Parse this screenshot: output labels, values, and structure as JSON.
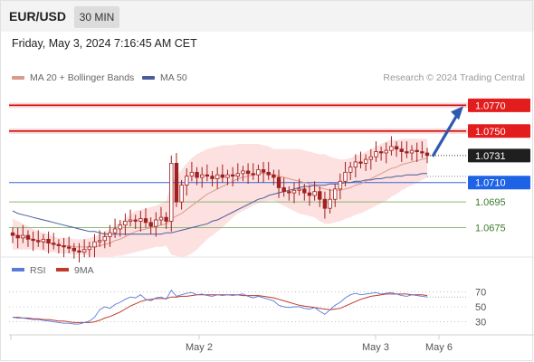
{
  "header": {
    "symbol": "EUR/USD",
    "timeframe": "30 MIN"
  },
  "datetime": "Friday, May 3, 2024 7:16:45 AM CET",
  "legend": {
    "ma20": "MA 20 + Bollinger Bands",
    "ma50": "MA 50"
  },
  "credit": "Research © 2024 Trading Central",
  "colors": {
    "resistance": "#cc1111",
    "support": "#8aba7a",
    "pivot": "#3b66d8",
    "ma50": "#4a5c9a",
    "ma20": "#d89a8a",
    "band": "#fde0e0",
    "candle": "#a02020"
  },
  "chart_data": [
    {
      "type": "candlestick",
      "price_range": [
        1.0655,
        1.0785
      ],
      "x_labels": [
        "May 2",
        "May 3",
        "May 6"
      ],
      "last_price": {
        "label": "1.0731",
        "value": 1.0731
      },
      "levels": [
        {
          "label": "1.0770",
          "value": 1.077,
          "kind": "resistance"
        },
        {
          "label": "1.0750",
          "value": 1.075,
          "kind": "resistance"
        },
        {
          "label": "1.0710",
          "value": 1.071,
          "kind": "pivot"
        },
        {
          "label": "1.0695",
          "value": 1.0695,
          "kind": "support"
        },
        {
          "label": "1.0675",
          "value": 1.0675,
          "kind": "support"
        }
      ],
      "close": [
        1.0669,
        1.0667,
        1.0669,
        1.0666,
        1.0665,
        1.0664,
        1.0666,
        1.0663,
        1.0662,
        1.0661,
        1.066,
        1.0659,
        1.0657,
        1.0656,
        1.0658,
        1.066,
        1.0664,
        1.0665,
        1.0668,
        1.0671,
        1.0674,
        1.0677,
        1.068,
        1.0681,
        1.068,
        1.0682,
        1.0679,
        1.0676,
        1.0681,
        1.0683,
        1.068,
        1.0725,
        1.0695,
        1.0708,
        1.0715,
        1.0718,
        1.0714,
        1.0716,
        1.0715,
        1.0713,
        1.0716,
        1.0714,
        1.0716,
        1.0715,
        1.0717,
        1.0719,
        1.0717,
        1.0716,
        1.072,
        1.0718,
        1.0716,
        1.0714,
        1.0706,
        1.0703,
        1.0702,
        1.0704,
        1.0705,
        1.0702,
        1.07,
        1.0703,
        1.0697,
        1.069,
        1.0697,
        1.0705,
        1.0711,
        1.0718,
        1.0722,
        1.0726,
        1.0725,
        1.0728,
        1.073,
        1.0734,
        1.0733,
        1.0735,
        1.0738,
        1.0736,
        1.0734,
        1.0733,
        1.0735,
        1.0734,
        1.0733,
        1.0731
      ],
      "ma20": [
        1.067,
        1.0669,
        1.0668,
        1.0667,
        1.0666,
        1.0665,
        1.0664,
        1.0663,
        1.0662,
        1.0661,
        1.0661,
        1.0661,
        1.066,
        1.066,
        1.066,
        1.066,
        1.066,
        1.0661,
        1.0662,
        1.0663,
        1.0665,
        1.0666,
        1.0668,
        1.067,
        1.0672,
        1.0673,
        1.0674,
        1.0675,
        1.0676,
        1.0677,
        1.0678,
        1.0682,
        1.0684,
        1.0686,
        1.0689,
        1.0692,
        1.0695,
        1.0698,
        1.0701,
        1.0703,
        1.0705,
        1.0707,
        1.0709,
        1.0711,
        1.0713,
        1.0714,
        1.0715,
        1.0716,
        1.0717,
        1.0717,
        1.0717,
        1.0716,
        1.0715,
        1.0714,
        1.0713,
        1.0712,
        1.0711,
        1.071,
        1.0709,
        1.0708,
        1.0706,
        1.0705,
        1.0704,
        1.0704,
        1.0704,
        1.0705,
        1.0706,
        1.0708,
        1.0709,
        1.0711,
        1.0713,
        1.0715,
        1.0717,
        1.0719,
        1.0721,
        1.0722,
        1.0724,
        1.0725,
        1.0726,
        1.0727,
        1.0728,
        1.0729
      ],
      "band_width": [
        0.0012,
        0.0011,
        0.001,
        0.0009,
        0.0008,
        0.0007,
        0.0007,
        0.0007,
        0.0006,
        0.0006,
        0.0006,
        0.0006,
        0.0006,
        0.0006,
        0.0006,
        0.0007,
        0.0008,
        0.0009,
        0.001,
        0.0011,
        0.0012,
        0.0013,
        0.0014,
        0.0015,
        0.0016,
        0.0016,
        0.0016,
        0.0016,
        0.0016,
        0.0017,
        0.0017,
        0.0028,
        0.0031,
        0.0034,
        0.0036,
        0.0037,
        0.0037,
        0.0036,
        0.0035,
        0.0034,
        0.0033,
        0.0032,
        0.003,
        0.0028,
        0.0027,
        0.0026,
        0.0025,
        0.0024,
        0.0023,
        0.0022,
        0.0021,
        0.002,
        0.0021,
        0.0022,
        0.0023,
        0.0024,
        0.0025,
        0.0025,
        0.0025,
        0.0025,
        0.0026,
        0.0027,
        0.0026,
        0.0025,
        0.0024,
        0.0023,
        0.0023,
        0.0023,
        0.0023,
        0.0023,
        0.0023,
        0.0023,
        0.0023,
        0.0023,
        0.0022,
        0.0021,
        0.002,
        0.0019,
        0.0018,
        0.0017,
        0.0016,
        0.0015
      ],
      "ma50": [
        1.0688,
        1.0686,
        1.0685,
        1.0684,
        1.0683,
        1.0682,
        1.0681,
        1.068,
        1.0679,
        1.0678,
        1.0677,
        1.0676,
        1.0675,
        1.0674,
        1.0673,
        1.0672,
        1.0672,
        1.0671,
        1.067,
        1.067,
        1.067,
        1.067,
        1.067,
        1.067,
        1.067,
        1.067,
        1.067,
        1.067,
        1.067,
        1.067,
        1.0671,
        1.0671,
        1.0672,
        1.0673,
        1.0674,
        1.0675,
        1.0676,
        1.0677,
        1.0678,
        1.068,
        1.0681,
        1.0683,
        1.0685,
        1.0687,
        1.0689,
        1.0691,
        1.0693,
        1.0695,
        1.0697,
        1.0698,
        1.07,
        1.0701,
        1.0702,
        1.0703,
        1.0704,
        1.0705,
        1.0706,
        1.0707,
        1.0707,
        1.0708,
        1.0708,
        1.0708,
        1.0709,
        1.0709,
        1.0709,
        1.071,
        1.071,
        1.0711,
        1.0711,
        1.0712,
        1.0712,
        1.0713,
        1.0713,
        1.0714,
        1.0714,
        1.0715,
        1.0715,
        1.0716,
        1.0716,
        1.0716,
        1.0717,
        1.0717
      ],
      "projection": {
        "from": 1.0731,
        "to": 1.077
      }
    },
    {
      "type": "line",
      "legend": [
        "RSI",
        "9MA"
      ],
      "y_ticks": [
        "70",
        "50",
        "30"
      ],
      "ylim": [
        15,
        85
      ],
      "rsi": [
        36,
        35,
        35,
        34,
        33,
        33,
        32,
        31,
        30,
        29,
        28,
        28,
        27,
        27,
        29,
        31,
        36,
        46,
        50,
        48,
        53,
        56,
        60,
        63,
        62,
        66,
        60,
        58,
        62,
        63,
        60,
        72,
        64,
        66,
        68,
        69,
        66,
        67,
        65,
        64,
        66,
        65,
        66,
        65,
        66,
        67,
        64,
        62,
        64,
        62,
        60,
        58,
        52,
        50,
        49,
        50,
        50,
        48,
        47,
        49,
        44,
        40,
        46,
        52,
        56,
        62,
        66,
        68,
        66,
        67,
        68,
        69,
        67,
        68,
        69,
        67,
        65,
        64,
        66,
        65,
        64,
        63
      ],
      "ma9": [
        36,
        36,
        35,
        35,
        34,
        34,
        33,
        33,
        32,
        31,
        31,
        30,
        29,
        29,
        29,
        29,
        30,
        32,
        35,
        37,
        40,
        43,
        47,
        51,
        54,
        57,
        59,
        60,
        61,
        61,
        61,
        63,
        63,
        64,
        64,
        65,
        66,
        66,
        66,
        66,
        66,
        66,
        66,
        66,
        66,
        65,
        65,
        65,
        65,
        64,
        63,
        62,
        60,
        58,
        56,
        54,
        52,
        51,
        50,
        49,
        48,
        47,
        46,
        47,
        48,
        51,
        54,
        57,
        60,
        62,
        64,
        65,
        66,
        67,
        67,
        67,
        67,
        67,
        66,
        66,
        66,
        65
      ]
    }
  ]
}
